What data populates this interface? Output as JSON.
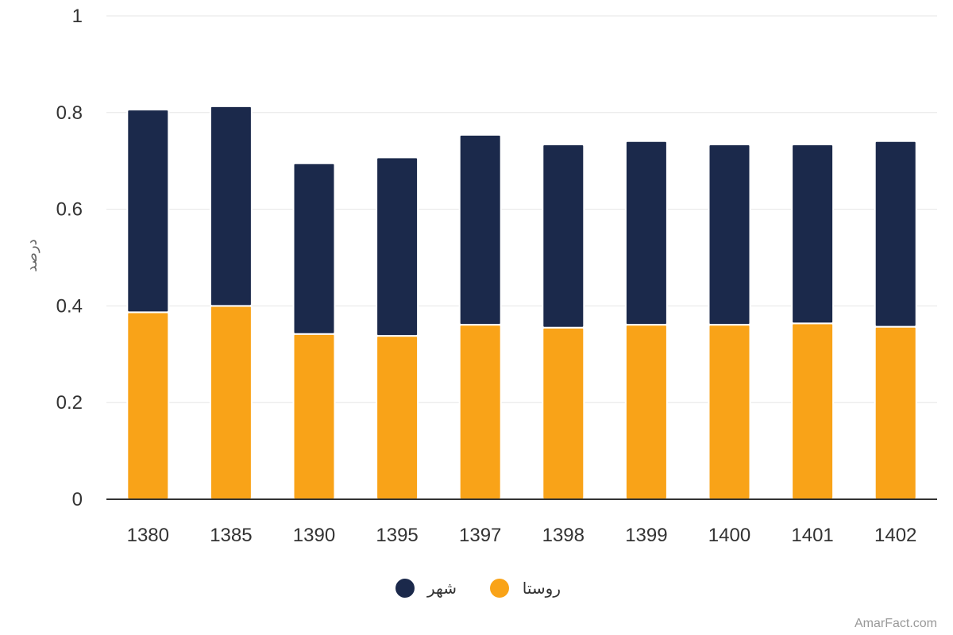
{
  "chart_data": {
    "type": "bar",
    "stacked": true,
    "categories": [
      "1380",
      "1385",
      "1390",
      "1395",
      "1397",
      "1398",
      "1399",
      "1400",
      "1401",
      "1402"
    ],
    "series": [
      {
        "name": "روستا",
        "color": "#F9A318",
        "values": [
          0.387,
          0.4,
          0.342,
          0.338,
          0.361,
          0.355,
          0.361,
          0.361,
          0.364,
          0.357
        ]
      },
      {
        "name": "شهر",
        "color": "#1B294B",
        "values": [
          0.419,
          0.413,
          0.353,
          0.369,
          0.393,
          0.379,
          0.38,
          0.373,
          0.37,
          0.384
        ]
      }
    ],
    "ylabel": "درصد",
    "ylim": [
      0,
      1
    ],
    "yticks": [
      "0",
      "0.2",
      "0.4",
      "0.6",
      "0.8",
      "1"
    ],
    "grid": true,
    "legend": "bottom-center"
  },
  "credit": "AmarFact.com"
}
